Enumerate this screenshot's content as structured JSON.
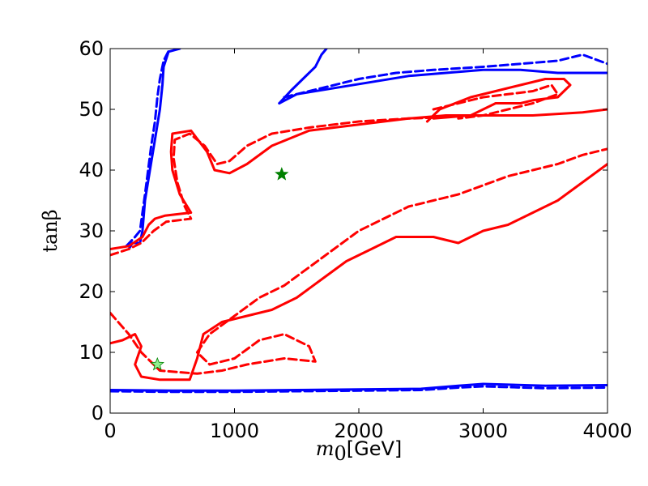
{
  "chart_data": {
    "type": "line",
    "title": "",
    "xlabel": {
      "var": "m",
      "sub": "0",
      "unit": "[GeV]"
    },
    "ylabel": "tanβ",
    "xlim": [
      0,
      4000
    ],
    "ylim": [
      0,
      60
    ],
    "xticks": [
      0,
      1000,
      2000,
      3000,
      4000
    ],
    "yticks": [
      0,
      10,
      20,
      30,
      40,
      50,
      60
    ],
    "colors": {
      "blue": "#0000ff",
      "red": "#ff0000",
      "star_dark": "#008000",
      "star_light": "#90ee90"
    },
    "series": [
      {
        "name": "blue-left-solid",
        "color": "blue",
        "dash": false,
        "points": [
          [
            150,
            27
          ],
          [
            180,
            28
          ],
          [
            240,
            28
          ],
          [
            260,
            30
          ],
          [
            280,
            35
          ],
          [
            320,
            40
          ],
          [
            360,
            45
          ],
          [
            400,
            50
          ],
          [
            420,
            54
          ],
          [
            430,
            57
          ],
          [
            470,
            59.5
          ],
          [
            560,
            60
          ]
        ]
      },
      {
        "name": "blue-left-dashed",
        "color": "blue",
        "dash": true,
        "points": [
          [
            130,
            27.5
          ],
          [
            200,
            29
          ],
          [
            240,
            30
          ],
          [
            280,
            36
          ],
          [
            330,
            44
          ],
          [
            360,
            48
          ],
          [
            380,
            52
          ],
          [
            400,
            55
          ],
          [
            430,
            58
          ],
          [
            480,
            60
          ]
        ]
      },
      {
        "name": "blue-upper-right-solid",
        "color": "blue",
        "dash": false,
        "points": [
          [
            1360,
            51
          ],
          [
            1500,
            52.5
          ],
          [
            1800,
            53.5
          ],
          [
            2100,
            54.5
          ],
          [
            2400,
            55.5
          ],
          [
            2700,
            56
          ],
          [
            3000,
            56.5
          ],
          [
            3300,
            56.5
          ],
          [
            3600,
            56
          ],
          [
            4000,
            56
          ]
        ]
      },
      {
        "name": "blue-upper-right-dashed",
        "color": "blue",
        "dash": true,
        "points": [
          [
            1400,
            52
          ],
          [
            1700,
            53.5
          ],
          [
            2000,
            55
          ],
          [
            2300,
            56
          ],
          [
            2600,
            56.5
          ],
          [
            3000,
            57
          ],
          [
            3300,
            57.5
          ],
          [
            3600,
            58
          ],
          [
            3800,
            59
          ],
          [
            4000,
            57.5
          ]
        ]
      },
      {
        "name": "blue-upper-spike-solid",
        "color": "blue",
        "dash": false,
        "points": [
          [
            1360,
            51
          ],
          [
            1450,
            53
          ],
          [
            1550,
            55
          ],
          [
            1650,
            57
          ],
          [
            1700,
            59
          ],
          [
            1740,
            60
          ]
        ]
      },
      {
        "name": "blue-bottom-solid",
        "color": "blue",
        "dash": false,
        "points": [
          [
            0,
            3.8
          ],
          [
            500,
            3.7
          ],
          [
            1000,
            3.7
          ],
          [
            1500,
            3.8
          ],
          [
            2000,
            3.9
          ],
          [
            2500,
            4
          ],
          [
            2800,
            4.5
          ],
          [
            3000,
            4.8
          ],
          [
            3500,
            4.5
          ],
          [
            4000,
            4.6
          ]
        ]
      },
      {
        "name": "blue-bottom-dashed",
        "color": "blue",
        "dash": true,
        "points": [
          [
            0,
            3.6
          ],
          [
            500,
            3.5
          ],
          [
            1000,
            3.5
          ],
          [
            1500,
            3.6
          ],
          [
            2000,
            3.7
          ],
          [
            2500,
            3.8
          ],
          [
            2800,
            4.2
          ],
          [
            3000,
            4.4
          ],
          [
            3500,
            4.1
          ],
          [
            4000,
            4.2
          ]
        ]
      },
      {
        "name": "red-upper-left-solid",
        "color": "red",
        "dash": false,
        "points": [
          [
            0,
            27
          ],
          [
            150,
            27.5
          ],
          [
            260,
            29
          ],
          [
            310,
            31
          ],
          [
            360,
            32
          ],
          [
            440,
            32.5
          ],
          [
            650,
            33
          ],
          [
            560,
            36
          ],
          [
            500,
            40
          ],
          [
            490,
            43
          ],
          [
            500,
            46
          ],
          [
            650,
            46.5
          ],
          [
            780,
            43
          ],
          [
            840,
            40
          ],
          [
            960,
            39.5
          ],
          [
            1100,
            41
          ],
          [
            1300,
            44
          ],
          [
            1600,
            46.5
          ],
          [
            2000,
            47.5
          ],
          [
            2400,
            48.5
          ],
          [
            2700,
            49
          ],
          [
            3000,
            49
          ],
          [
            3400,
            49
          ],
          [
            3800,
            49.5
          ],
          [
            4000,
            50
          ]
        ]
      },
      {
        "name": "red-upper-left-dashed",
        "color": "red",
        "dash": true,
        "points": [
          [
            0,
            26
          ],
          [
            150,
            27
          ],
          [
            250,
            28
          ],
          [
            350,
            30
          ],
          [
            450,
            31.5
          ],
          [
            650,
            32
          ],
          [
            600,
            34
          ],
          [
            540,
            38
          ],
          [
            510,
            42
          ],
          [
            520,
            45
          ],
          [
            640,
            46
          ],
          [
            760,
            44
          ],
          [
            860,
            41
          ],
          [
            960,
            41.5
          ],
          [
            1100,
            44
          ],
          [
            1300,
            46
          ],
          [
            1600,
            47
          ],
          [
            2000,
            48
          ],
          [
            2400,
            48.5
          ],
          [
            2700,
            48.7
          ]
        ]
      },
      {
        "name": "red-upper-right-band-solid",
        "color": "red",
        "dash": false,
        "points": [
          [
            2550,
            48
          ],
          [
            2650,
            50
          ],
          [
            2900,
            52
          ],
          [
            3100,
            53
          ],
          [
            3300,
            54
          ],
          [
            3500,
            55
          ],
          [
            3650,
            55
          ],
          [
            3700,
            54
          ],
          [
            3600,
            52
          ],
          [
            3400,
            51.5
          ],
          [
            3300,
            51
          ],
          [
            3100,
            51
          ],
          [
            2900,
            49
          ],
          [
            2600,
            48.5
          ]
        ]
      },
      {
        "name": "red-upper-right-band-dashed",
        "color": "red",
        "dash": true,
        "points": [
          [
            2600,
            50
          ],
          [
            2800,
            51
          ],
          [
            3000,
            52
          ],
          [
            3200,
            52.5
          ],
          [
            3400,
            53
          ],
          [
            3550,
            54
          ],
          [
            3600,
            52.5
          ],
          [
            3400,
            51
          ],
          [
            3200,
            50
          ],
          [
            3000,
            49
          ],
          [
            2800,
            48.5
          ]
        ]
      },
      {
        "name": "red-lower-solid",
        "color": "red",
        "dash": false,
        "points": [
          [
            0,
            11.5
          ],
          [
            100,
            12
          ],
          [
            200,
            13
          ],
          [
            250,
            11
          ],
          [
            200,
            8
          ],
          [
            250,
            6
          ],
          [
            400,
            5.5
          ],
          [
            640,
            5.5
          ],
          [
            700,
            9
          ],
          [
            750,
            13
          ],
          [
            900,
            15
          ],
          [
            1100,
            16
          ],
          [
            1300,
            17
          ],
          [
            1500,
            19
          ],
          [
            1700,
            22
          ],
          [
            1900,
            25
          ],
          [
            2100,
            27
          ],
          [
            2300,
            29
          ],
          [
            2600,
            29
          ],
          [
            2800,
            28
          ],
          [
            3000,
            30
          ],
          [
            3200,
            31
          ],
          [
            3400,
            33
          ],
          [
            3600,
            35
          ],
          [
            3800,
            38
          ],
          [
            4000,
            41
          ]
        ]
      },
      {
        "name": "red-lower-dashed",
        "color": "red",
        "dash": true,
        "points": [
          [
            0,
            16.5
          ],
          [
            150,
            13
          ],
          [
            250,
            10
          ],
          [
            400,
            7
          ],
          [
            700,
            6.5
          ],
          [
            900,
            7
          ],
          [
            1100,
            8
          ],
          [
            1400,
            9
          ],
          [
            1650,
            8.5
          ],
          [
            1600,
            11
          ],
          [
            1400,
            13
          ],
          [
            1200,
            12
          ],
          [
            1000,
            9
          ],
          [
            800,
            8
          ],
          [
            700,
            10
          ],
          [
            800,
            13
          ],
          [
            1000,
            16
          ],
          [
            1200,
            19
          ],
          [
            1400,
            21
          ],
          [
            1600,
            24
          ],
          [
            1800,
            27
          ],
          [
            2000,
            30
          ],
          [
            2200,
            32
          ],
          [
            2400,
            34
          ],
          [
            2600,
            35
          ],
          [
            2800,
            36
          ],
          [
            3000,
            37.5
          ],
          [
            3200,
            39
          ],
          [
            3400,
            40
          ],
          [
            3600,
            41
          ],
          [
            3800,
            42.5
          ],
          [
            4000,
            43.5
          ]
        ]
      }
    ],
    "markers": [
      {
        "name": "star-dark",
        "x": 1380,
        "y": 39.3,
        "color": "star_dark"
      },
      {
        "name": "star-light",
        "x": 380,
        "y": 8,
        "color": "star_light"
      }
    ]
  }
}
